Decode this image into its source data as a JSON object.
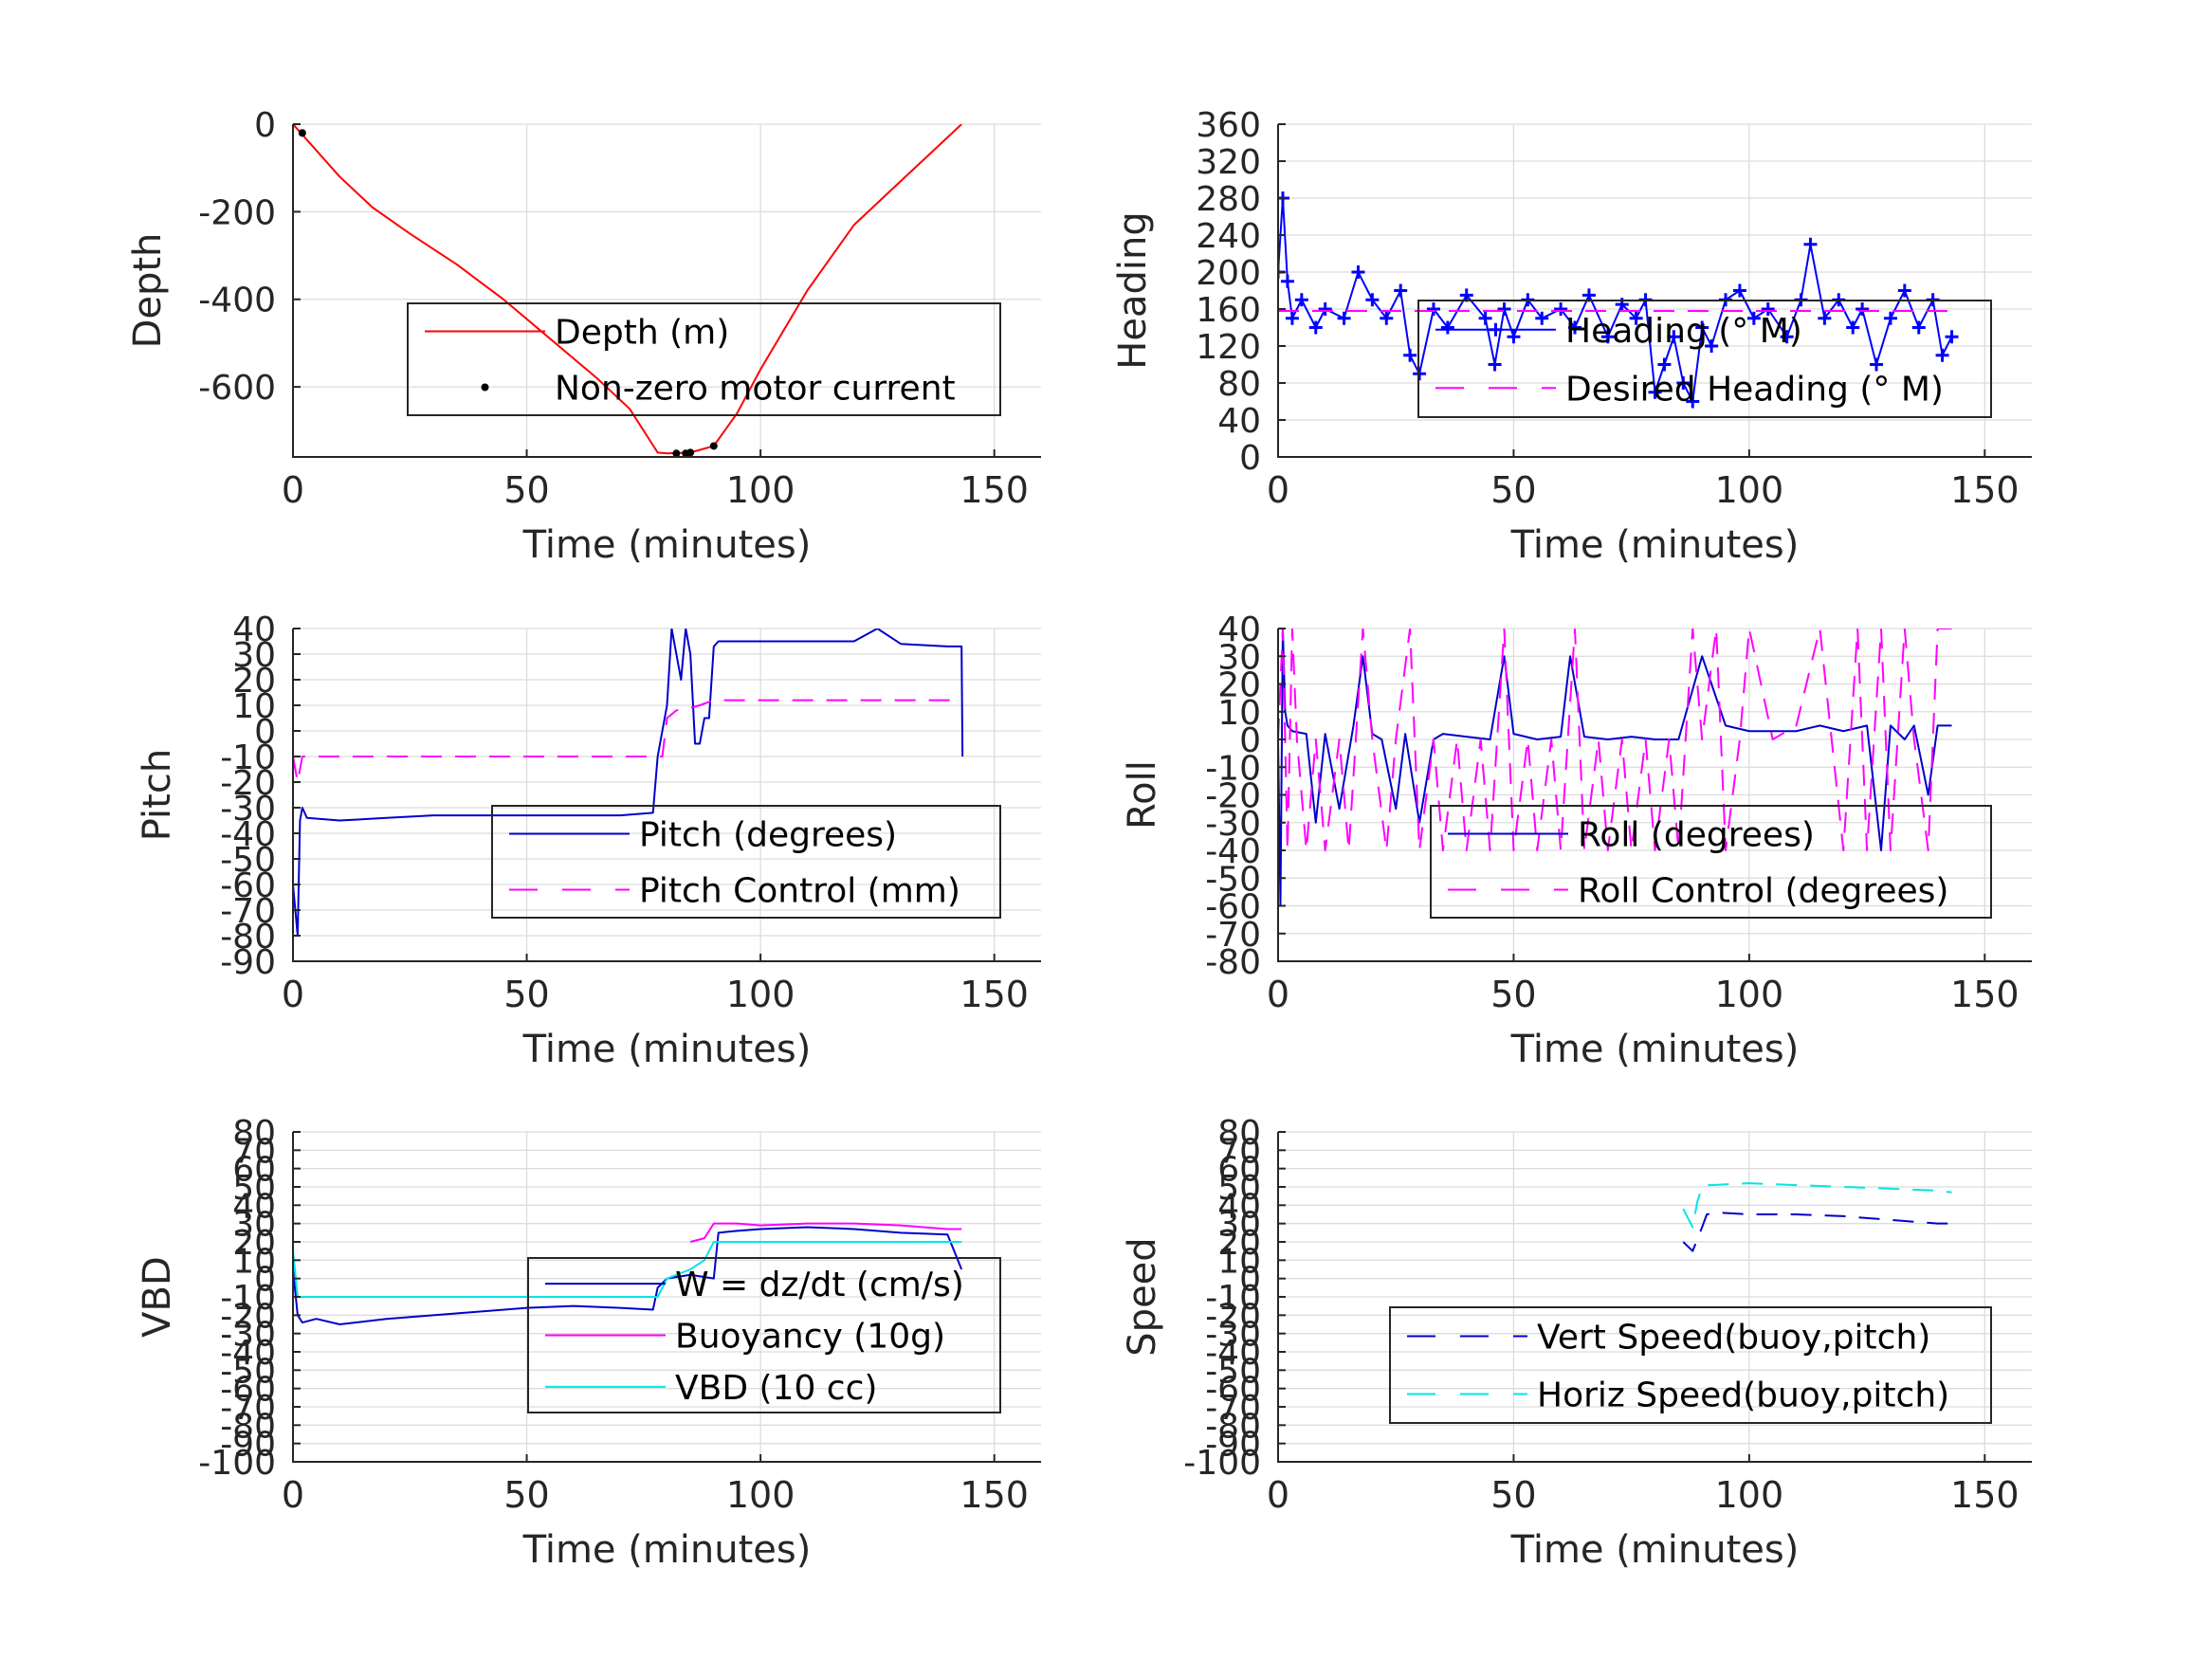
{
  "figure": {
    "background": "#ffffff",
    "grid_color": "#dcdcdc",
    "axis_color": "#262626"
  },
  "chart_data": [
    {
      "id": "depth",
      "type": "line",
      "xlabel": "Time (minutes)",
      "ylabel": "Depth",
      "xlim": [
        0,
        160
      ],
      "ylim": [
        -760,
        0
      ],
      "xticks": [
        0,
        50,
        100,
        150
      ],
      "yticks": [
        0,
        -200,
        -400,
        -600
      ],
      "grid": true,
      "legend": {
        "placement": "center-right"
      },
      "series": [
        {
          "name": "Depth (m)",
          "color": "#ff0000",
          "style": "solid",
          "x": [
            0,
            5,
            10,
            17,
            25,
            35,
            45,
            55,
            65,
            72,
            78,
            80,
            85,
            90,
            95,
            100,
            110,
            120,
            130,
            138,
            143
          ],
          "y": [
            0,
            -60,
            -120,
            -190,
            -250,
            -320,
            -400,
            -490,
            -580,
            -650,
            -750,
            -752,
            -750,
            -735,
            -660,
            -560,
            -380,
            -230,
            -130,
            -50,
            0
          ]
        },
        {
          "name": "Non-zero motor current",
          "color": "#000000",
          "style": "dots",
          "x": [
            2,
            82,
            84,
            85,
            90
          ],
          "y": [
            -20,
            -752,
            -752,
            -750,
            -735
          ]
        }
      ]
    },
    {
      "id": "heading",
      "type": "line",
      "xlabel": "Time (minutes)",
      "ylabel": "Heading",
      "xlim": [
        0,
        160
      ],
      "ylim": [
        0,
        360
      ],
      "xticks": [
        0,
        50,
        100,
        150
      ],
      "yticks": [
        0,
        40,
        80,
        120,
        160,
        200,
        240,
        280,
        320,
        360
      ],
      "grid": true,
      "legend": {
        "placement": "center-right"
      },
      "series": [
        {
          "name": "Heading (° M)",
          "color": "#0000ff",
          "style": "plus",
          "x": [
            0,
            1,
            2,
            3,
            5,
            8,
            10,
            14,
            17,
            20,
            23,
            26,
            28,
            30,
            33,
            36,
            40,
            44,
            46,
            48,
            50,
            53,
            56,
            60,
            63,
            66,
            70,
            73,
            76,
            78,
            80,
            82,
            84,
            86,
            88,
            90,
            92,
            95,
            98,
            101,
            104,
            108,
            111,
            113,
            116,
            119,
            122,
            124,
            127,
            130,
            133,
            136,
            139,
            141,
            143
          ],
          "y": [
            200,
            280,
            190,
            150,
            170,
            140,
            160,
            150,
            200,
            170,
            150,
            180,
            110,
            90,
            160,
            140,
            175,
            150,
            100,
            160,
            130,
            170,
            150,
            160,
            140,
            175,
            130,
            165,
            150,
            170,
            70,
            100,
            130,
            80,
            60,
            140,
            120,
            170,
            180,
            150,
            160,
            130,
            170,
            230,
            150,
            170,
            140,
            160,
            100,
            150,
            180,
            140,
            170,
            110,
            130
          ]
        },
        {
          "name": "Desired Heading (° M)",
          "color": "#ff00ff",
          "style": "dashed",
          "x": [
            0,
            143
          ],
          "y": [
            158,
            158
          ]
        }
      ]
    },
    {
      "id": "pitch",
      "type": "line",
      "xlabel": "Time (minutes)",
      "ylabel": "Pitch",
      "xlim": [
        0,
        160
      ],
      "ylim": [
        -90,
        40
      ],
      "xticks": [
        0,
        50,
        100,
        150
      ],
      "yticks": [
        40,
        30,
        20,
        10,
        0,
        -10,
        -20,
        -30,
        -40,
        -50,
        -60,
        -70,
        -80,
        -90
      ],
      "grid": true,
      "legend": {
        "placement": "center-right"
      },
      "series": [
        {
          "name": "Pitch (degrees)",
          "color": "#0000cc",
          "style": "solid",
          "x": [
            0,
            1,
            1.5,
            2,
            3,
            10,
            20,
            30,
            40,
            50,
            60,
            70,
            77,
            78,
            80,
            81,
            82,
            83,
            84,
            85,
            86,
            87,
            88,
            89,
            90,
            91,
            95,
            100,
            110,
            120,
            125,
            130,
            140,
            143,
            143.2
          ],
          "y": [
            -60,
            -80,
            -35,
            -30,
            -34,
            -35,
            -34,
            -33,
            -33,
            -33,
            -33,
            -33,
            -32,
            -10,
            10,
            40,
            30,
            20,
            40,
            30,
            -5,
            -5,
            5,
            5,
            33,
            35,
            35,
            35,
            35,
            35,
            40,
            34,
            33,
            33,
            -10
          ]
        },
        {
          "name": "Pitch Control (mm)",
          "color": "#ff00ff",
          "style": "dashed",
          "x": [
            0,
            1,
            2,
            77,
            79,
            80,
            82,
            85,
            87,
            90,
            100,
            120,
            140,
            143
          ],
          "y": [
            -10,
            -20,
            -10,
            -10,
            -10,
            5,
            8,
            9,
            10,
            12,
            12,
            12,
            12,
            12
          ]
        }
      ]
    },
    {
      "id": "roll",
      "type": "line",
      "xlabel": "Time (minutes)",
      "ylabel": "Roll",
      "xlim": [
        0,
        160
      ],
      "ylim": [
        -80,
        40
      ],
      "xticks": [
        0,
        50,
        100,
        150
      ],
      "yticks": [
        40,
        30,
        20,
        10,
        0,
        -10,
        -20,
        -30,
        -40,
        -50,
        -60,
        -70,
        -80
      ],
      "grid": true,
      "legend": {
        "placement": "center-right"
      },
      "series": [
        {
          "name": "Roll (degrees)",
          "color": "#0000cc",
          "style": "solid",
          "x": [
            0,
            0.5,
            1,
            1.5,
            2,
            3,
            6,
            8,
            10,
            13,
            16,
            18,
            20,
            22,
            25,
            27,
            30,
            33,
            35,
            40,
            45,
            48,
            50,
            55,
            60,
            62,
            65,
            70,
            75,
            80,
            85,
            90,
            95,
            100,
            105,
            110,
            115,
            120,
            125,
            128,
            130,
            133,
            135,
            138,
            140,
            143
          ],
          "y": [
            0,
            -60,
            40,
            10,
            5,
            3,
            2,
            -30,
            2,
            -25,
            5,
            30,
            2,
            0,
            -25,
            2,
            -30,
            0,
            2,
            1,
            0,
            30,
            2,
            0,
            1,
            30,
            1,
            0,
            1,
            0,
            0,
            30,
            5,
            3,
            3,
            3,
            5,
            3,
            5,
            -40,
            5,
            0,
            5,
            -20,
            5,
            5
          ]
        },
        {
          "name": "Roll Control (degrees)",
          "color": "#ff00ff",
          "style": "dashed",
          "x": [
            0,
            1,
            2,
            3,
            4,
            6,
            8,
            10,
            13,
            15,
            18,
            20,
            23,
            25,
            28,
            30,
            33,
            35,
            38,
            40,
            43,
            45,
            48,
            50,
            53,
            55,
            58,
            60,
            63,
            65,
            68,
            70,
            73,
            75,
            78,
            80,
            83,
            85,
            88,
            90,
            93,
            95,
            98,
            100,
            105,
            110,
            115,
            120,
            123,
            125,
            128,
            130,
            133,
            135,
            138,
            140,
            143
          ],
          "y": [
            0,
            40,
            -40,
            40,
            0,
            -40,
            0,
            -40,
            0,
            -40,
            40,
            0,
            -40,
            0,
            40,
            -40,
            0,
            -40,
            0,
            -40,
            0,
            -40,
            40,
            -40,
            0,
            -40,
            0,
            -40,
            40,
            -40,
            0,
            -40,
            0,
            -40,
            0,
            -40,
            0,
            -40,
            40,
            0,
            40,
            -40,
            0,
            40,
            0,
            5,
            40,
            -40,
            40,
            -40,
            40,
            -40,
            40,
            0,
            -40,
            40,
            40
          ]
        }
      ]
    },
    {
      "id": "vbd",
      "type": "line",
      "xlabel": "Time (minutes)",
      "ylabel": "VBD",
      "xlim": [
        0,
        160
      ],
      "ylim": [
        -100,
        80
      ],
      "xticks": [
        0,
        50,
        100,
        150
      ],
      "yticks": [
        80,
        70,
        60,
        50,
        40,
        30,
        20,
        10,
        0,
        -10,
        -20,
        -30,
        -40,
        -50,
        -60,
        -70,
        -80,
        -90,
        -100
      ],
      "yticks_display": [
        "80",
        "70",
        "60",
        "50",
        "40",
        "30",
        "20",
        "10",
        "0",
        "-10",
        "-20",
        "-30",
        "-40",
        "-50",
        "-60",
        "-70",
        "-80",
        "-90",
        "-100"
      ],
      "grid": true,
      "legend": {
        "placement": "center-right"
      },
      "series": [
        {
          "name": "W = dz/dt (cm/s)",
          "color": "#0000cc",
          "style": "solid",
          "x": [
            0,
            1,
            2,
            5,
            10,
            20,
            30,
            40,
            50,
            60,
            70,
            77,
            78,
            80,
            85,
            90,
            91,
            95,
            100,
            110,
            120,
            130,
            140,
            143
          ],
          "y": [
            5,
            -20,
            -24,
            -22,
            -25,
            -22,
            -20,
            -18,
            -16,
            -15,
            -16,
            -17,
            -5,
            0,
            2,
            0,
            25,
            26,
            27,
            28,
            27,
            25,
            24,
            5
          ]
        },
        {
          "name": "Buoyancy (10g)",
          "color": "#ff00ff",
          "style": "solid",
          "x": [
            85,
            88,
            90,
            95,
            100,
            110,
            120,
            130,
            140,
            143
          ],
          "y": [
            20,
            22,
            30,
            30,
            29,
            30,
            30,
            29,
            27,
            27
          ]
        },
        {
          "name": "VBD (10 cc)",
          "color": "#00e5e5",
          "style": "solid",
          "x": [
            0,
            1,
            2,
            10,
            30,
            50,
            70,
            78,
            80,
            85,
            88,
            90,
            100,
            120,
            140,
            143
          ],
          "y": [
            15,
            -10,
            -10,
            -10,
            -10,
            -10,
            -10,
            -10,
            0,
            5,
            10,
            20,
            20,
            20,
            20,
            20
          ]
        }
      ]
    },
    {
      "id": "speed",
      "type": "line",
      "xlabel": "Time (minutes)",
      "ylabel": "Speed",
      "xlim": [
        0,
        160
      ],
      "ylim": [
        -100,
        80
      ],
      "xticks": [
        0,
        50,
        100,
        150
      ],
      "yticks": [
        80,
        70,
        60,
        50,
        40,
        30,
        20,
        10,
        0,
        -10,
        -20,
        -30,
        -40,
        -50,
        -60,
        -70,
        -80,
        -90,
        -100
      ],
      "yticks_display": [
        "80",
        "70",
        "60",
        "50",
        "40",
        "30",
        "20",
        "10",
        "0",
        "-10",
        "-20",
        "-30",
        "-40",
        "-50",
        "-60",
        "-70",
        "-80",
        "-90",
        "-100"
      ],
      "grid": true,
      "legend": {
        "placement": "lower-right"
      },
      "series": [
        {
          "name": "Vert Speed(buoy,pitch)",
          "color": "#0000cc",
          "style": "dashed",
          "x": [
            86,
            88,
            90,
            91,
            93,
            100,
            110,
            120,
            130,
            140,
            143
          ],
          "y": [
            20,
            15,
            28,
            35,
            36,
            35,
            35,
            34,
            32,
            30,
            30
          ]
        },
        {
          "name": "Horiz Speed(buoy,pitch)",
          "color": "#00e5e5",
          "style": "dashed",
          "x": [
            86,
            88,
            89,
            90,
            91,
            92,
            100,
            110,
            120,
            130,
            140,
            143
          ],
          "y": [
            38,
            28,
            42,
            50,
            51,
            51,
            52,
            51,
            50,
            49,
            48,
            47
          ]
        }
      ]
    }
  ]
}
